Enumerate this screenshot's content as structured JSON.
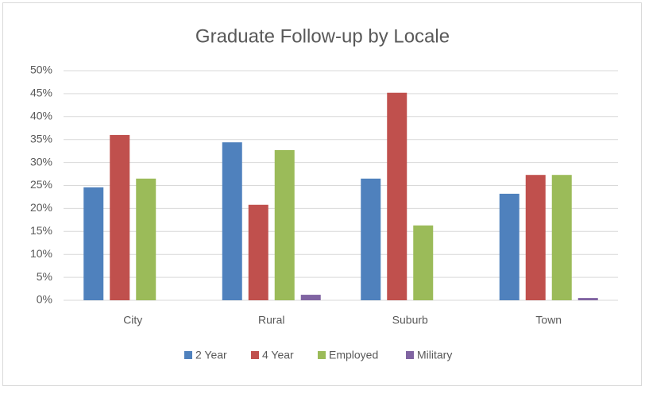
{
  "chart_data": {
    "type": "bar",
    "title": "Graduate Follow-up by Locale",
    "categories": [
      "City",
      "Rural",
      "Suburb",
      "Town"
    ],
    "series": [
      {
        "name": "2 Year",
        "color": "#4f81bd",
        "values": [
          24.6,
          34.4,
          26.5,
          23.2
        ]
      },
      {
        "name": "4 Year",
        "color": "#c0504d",
        "values": [
          36.0,
          20.8,
          45.2,
          27.3
        ]
      },
      {
        "name": "Employed",
        "color": "#9bbb59",
        "values": [
          26.5,
          32.7,
          16.3,
          27.3
        ]
      },
      {
        "name": "Military",
        "color": "#8064a2",
        "values": [
          0,
          1.2,
          0,
          0.5
        ]
      }
    ],
    "ylim": [
      0,
      50
    ],
    "yticks": [
      {
        "value": 0,
        "label": "0%"
      },
      {
        "value": 5,
        "label": "5%"
      },
      {
        "value": 10,
        "label": "10%"
      },
      {
        "value": 15,
        "label": "15%"
      },
      {
        "value": 20,
        "label": "20%"
      },
      {
        "value": 25,
        "label": "25%"
      },
      {
        "value": 30,
        "label": "30%"
      },
      {
        "value": 35,
        "label": "35%"
      },
      {
        "value": 40,
        "label": "40%"
      },
      {
        "value": 45,
        "label": "45%"
      },
      {
        "value": 50,
        "label": "50%"
      }
    ],
    "grid": true,
    "legend": "bottom"
  }
}
